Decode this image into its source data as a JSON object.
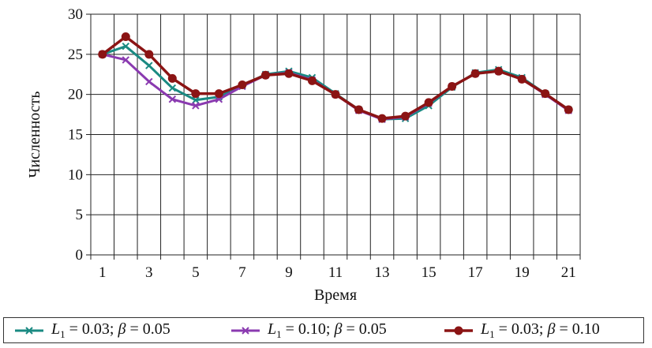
{
  "chart_data": {
    "type": "line",
    "title": "",
    "xlabel": "Время",
    "ylabel": "Численность",
    "xlim": [
      1,
      21
    ],
    "ylim": [
      0,
      30
    ],
    "x": [
      1,
      2,
      3,
      4,
      5,
      6,
      7,
      8,
      9,
      10,
      11,
      12,
      13,
      14,
      15,
      16,
      17,
      18,
      19,
      20,
      21
    ],
    "x_tick_labels": [
      "1",
      "3",
      "5",
      "7",
      "9",
      "11",
      "13",
      "15",
      "17",
      "19",
      "21"
    ],
    "y_tick_labels": [
      "0",
      "5",
      "10",
      "15",
      "20",
      "25",
      "30"
    ],
    "grid": true,
    "legend_position": "bottom",
    "series": [
      {
        "name": "L1 = 0.03; β = 0.05",
        "legend_parts": [
          "L",
          "1",
          " = 0.03; ",
          "β",
          " = 0.05"
        ],
        "color": "#1a8a82",
        "marker": "x",
        "values": [
          25,
          26,
          23.6,
          20.8,
          19.3,
          19.7,
          21.1,
          22.5,
          22.9,
          22.1,
          20.1,
          18.1,
          16.9,
          17.0,
          18.6,
          20.9,
          22.7,
          23.1,
          22.1,
          20.1,
          18.1
        ]
      },
      {
        "name": "L1 = 0.10; β = 0.05",
        "legend_parts": [
          "L",
          "1",
          " = 0.10; ",
          "β",
          " = 0.05"
        ],
        "color": "#8a3ab0",
        "marker": "x",
        "values": [
          25,
          24.3,
          21.6,
          19.4,
          18.6,
          19.4,
          21.0,
          22.4,
          22.7,
          21.8,
          20.0,
          18.0,
          16.9,
          17.2,
          18.9,
          21.0,
          22.6,
          22.9,
          21.9,
          20.0,
          18.0
        ]
      },
      {
        "name": "L1 = 0.03; β = 0.10",
        "legend_parts": [
          "L",
          "1",
          " = 0.03; ",
          "β",
          " = 0.10"
        ],
        "color": "#8b1414",
        "marker": "circle",
        "values": [
          25,
          27.2,
          25.0,
          22.0,
          20.1,
          20.1,
          21.2,
          22.4,
          22.6,
          21.7,
          20.0,
          18.1,
          17.0,
          17.3,
          19.0,
          21.0,
          22.6,
          22.9,
          21.9,
          20.1,
          18.1
        ]
      }
    ]
  }
}
